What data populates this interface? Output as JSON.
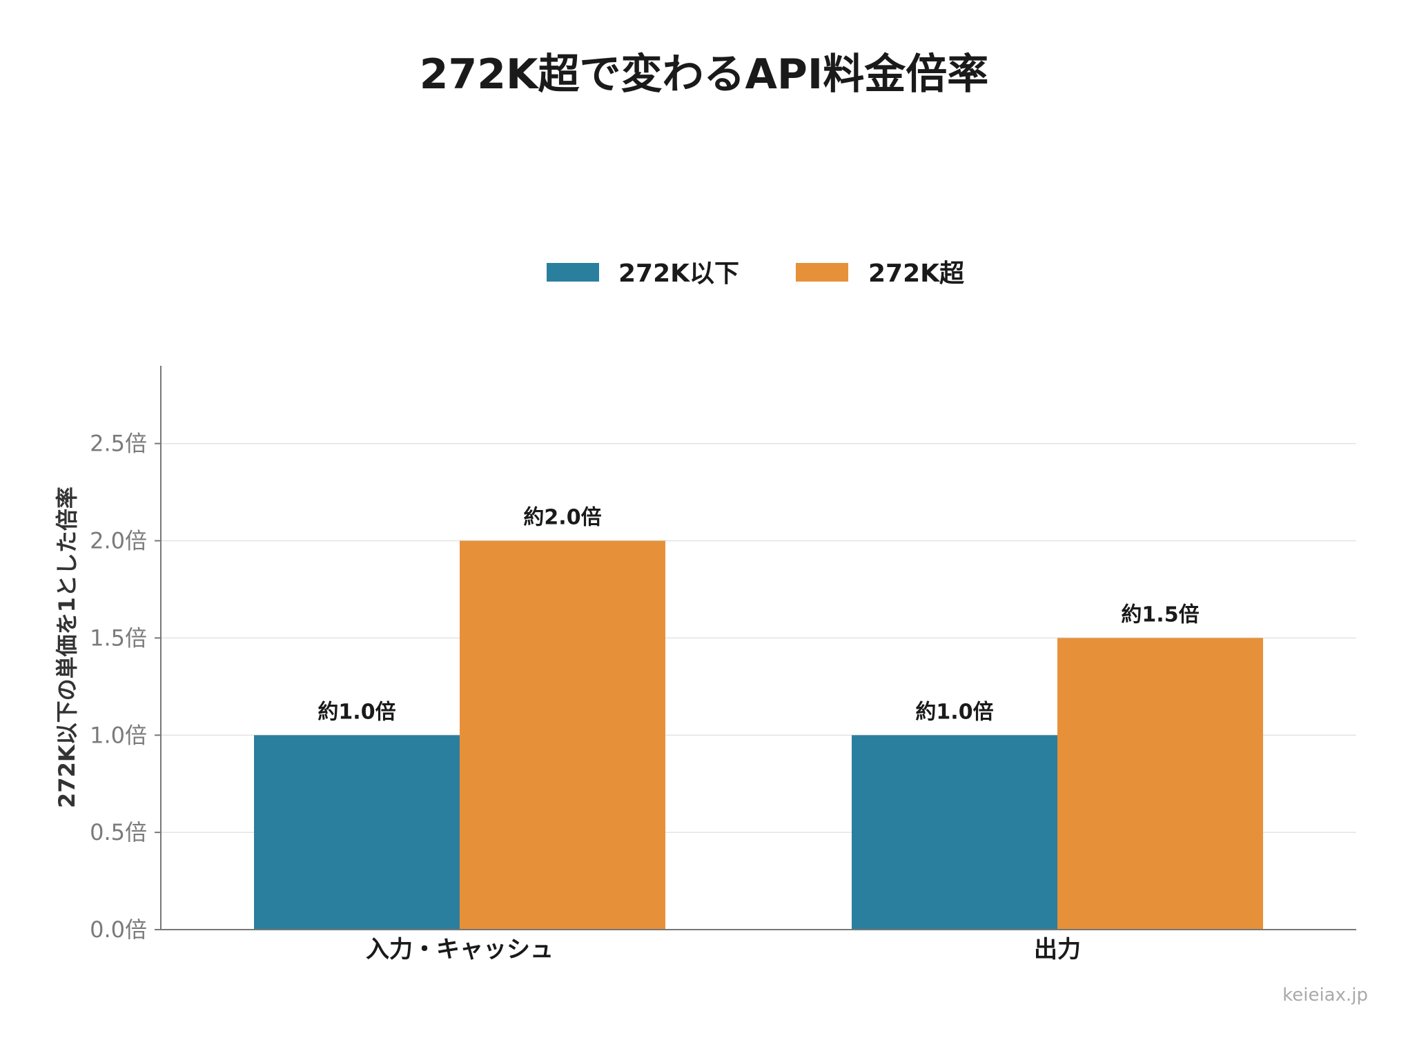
{
  "chart_data": {
    "type": "bar",
    "title": "272K超で変わるAPI料金倍率",
    "categories": [
      "入力・キャッシュ",
      "出力"
    ],
    "series": [
      {
        "name": "272K以下",
        "color": "#2a7f9e",
        "values": [
          1.0,
          1.0
        ],
        "labels": [
          "約1.0倍",
          "約1.0倍"
        ]
      },
      {
        "name": "272K超",
        "color": "#e6913a",
        "values": [
          2.0,
          1.5
        ],
        "labels": [
          "約2.0倍",
          "約1.5倍"
        ]
      }
    ],
    "ylabel": "272K以下の単価を1とした倍率",
    "xlabel": "",
    "ylim": [
      0,
      2.9
    ],
    "yticks": [
      0.0,
      0.5,
      1.0,
      1.5,
      2.0,
      2.5
    ],
    "ytick_labels": [
      "0.0倍",
      "0.5倍",
      "1.0倍",
      "1.5倍",
      "2.0倍",
      "2.5倍"
    ],
    "grid": "horizontal",
    "legend_position": "top-center"
  },
  "watermark": "keieiax.jp"
}
